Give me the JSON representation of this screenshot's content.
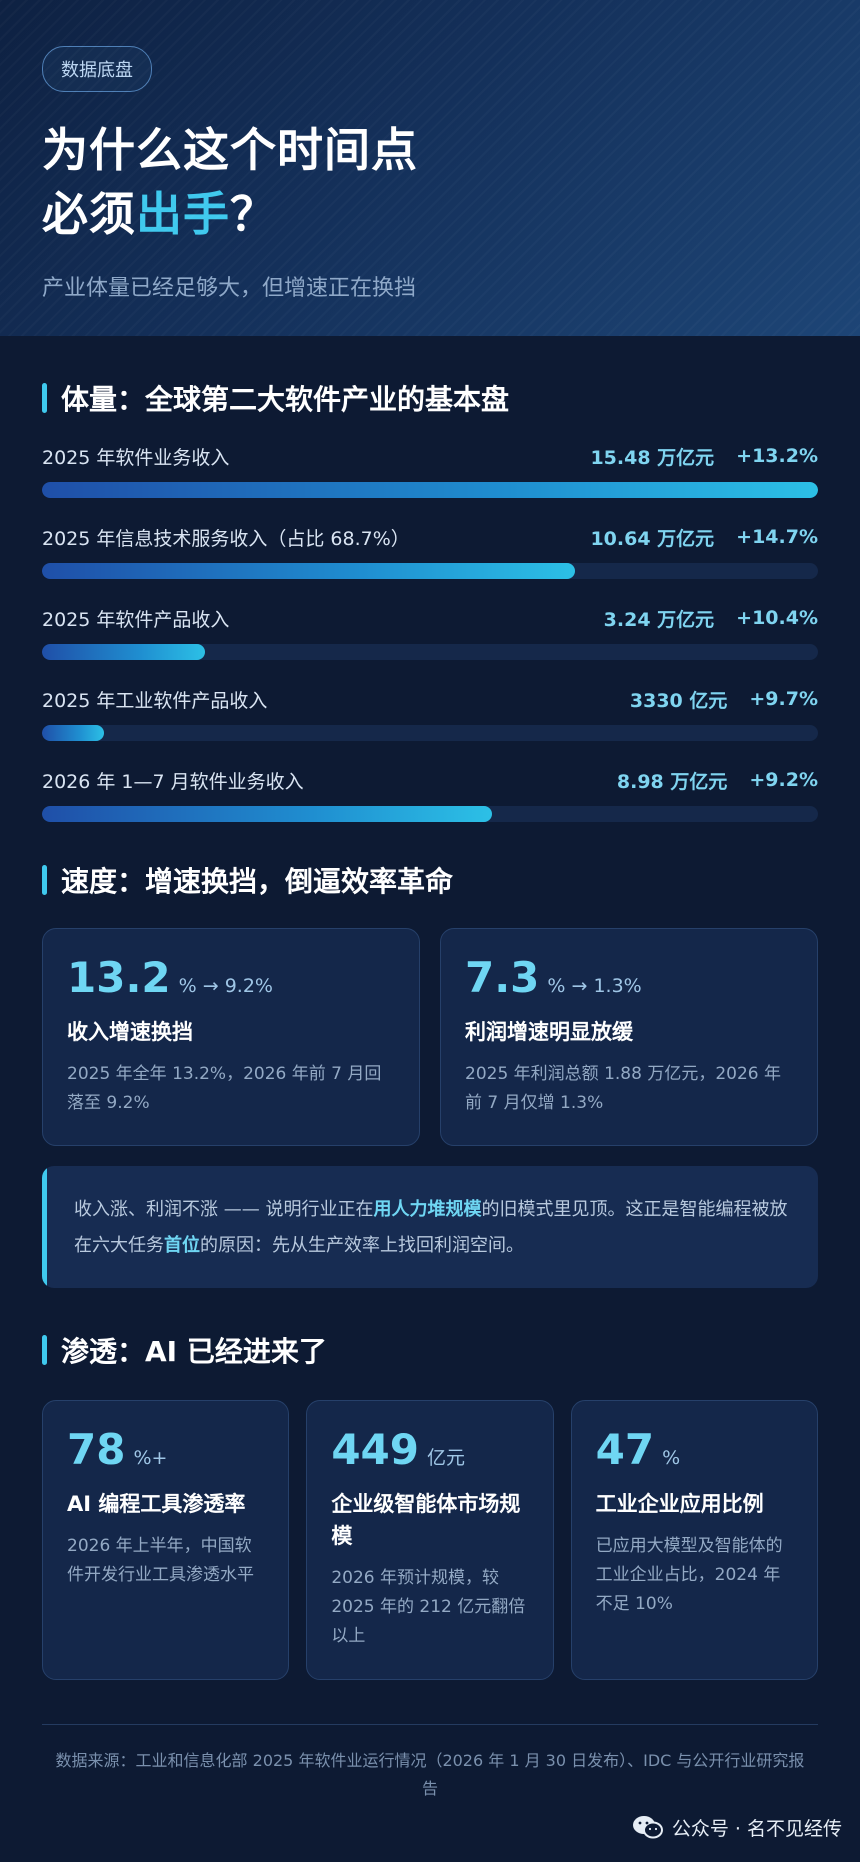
{
  "hero": {
    "tag": "数据底盘",
    "title_line1": "为什么这个时间点",
    "title_line2_prefix": "必须",
    "title_line2_highlight": "出手",
    "title_line2_suffix": "？",
    "subtitle": "产业体量已经足够大，但增速正在换挡"
  },
  "section_scale": {
    "title": "体量：全球第二大软件产业的基本盘",
    "metrics": [
      {
        "label": "2025 年软件业务收入",
        "value": "15.48 万亿元",
        "growth": "+13.2%",
        "fill_fraction": 1.0
      },
      {
        "label": "2025 年信息技术服务收入（占比 68.7%）",
        "value": "10.64 万亿元",
        "growth": "+14.7%",
        "fill_fraction": 0.687
      },
      {
        "label": "2025 年软件产品收入",
        "value": "3.24 万亿元",
        "growth": "+10.4%",
        "fill_fraction": 0.21
      },
      {
        "label": "2025 年工业软件产品收入",
        "value": "3330 亿元",
        "growth": "+9.7%",
        "fill_fraction": 0.08
      },
      {
        "label": "2026 年 1—7 月软件业务收入",
        "value": "8.98 万亿元",
        "growth": "+9.2%",
        "fill_fraction": 0.58
      }
    ]
  },
  "section_speed": {
    "title": "速度：增速换挡，倒逼效率革命",
    "cards": [
      {
        "num": "13.2",
        "unit": "% → 9.2%",
        "title": "收入增速换挡",
        "desc": "2025 年全年 13.2%，2026 年前 7 月回落至 9.2%"
      },
      {
        "num": "7.3",
        "unit": "% → 1.3%",
        "title": "利润增速明显放缓",
        "desc": "2025 年利润总额 1.88 万亿元，2026 年前 7 月仅增 1.3%"
      }
    ],
    "note": {
      "p1": "收入涨、利润不涨 —— 说明行业正在",
      "b1": "用人力堆规模",
      "p2": "的旧模式里见顶。这正是智能编程被放在六大任务",
      "b2": "首位",
      "p3": "的原因：先从生产效率上找回利润空间。"
    }
  },
  "section_penetration": {
    "title": "渗透：AI 已经进来了",
    "cards": [
      {
        "num": "78",
        "unit": "%+",
        "title": "AI 编程工具渗透率",
        "desc": "2026 年上半年，中国软件开发行业工具渗透水平"
      },
      {
        "num": "449",
        "unit": "亿元",
        "title": "企业级智能体市场规模",
        "desc": "2026 年预计规模，较 2025 年的 212 亿元翻倍以上"
      },
      {
        "num": "47",
        "unit": "%",
        "title": "工业企业应用比例",
        "desc": "已应用大模型及智能体的工业企业占比，2024 年不足 10%"
      }
    ]
  },
  "footer": {
    "source": "数据来源：工业和信息化部 2025 年软件业运行情况（2026 年 1 月 30 日发布）、IDC 与公开行业研究报告"
  },
  "watermark": {
    "text": "公众号 · 名不见经传",
    "icon": "wechat-icon"
  },
  "colors": {
    "background": "#0d1a33",
    "accent": "#3fc9ee",
    "value": "#7fd4f0",
    "card": "#14274a"
  }
}
